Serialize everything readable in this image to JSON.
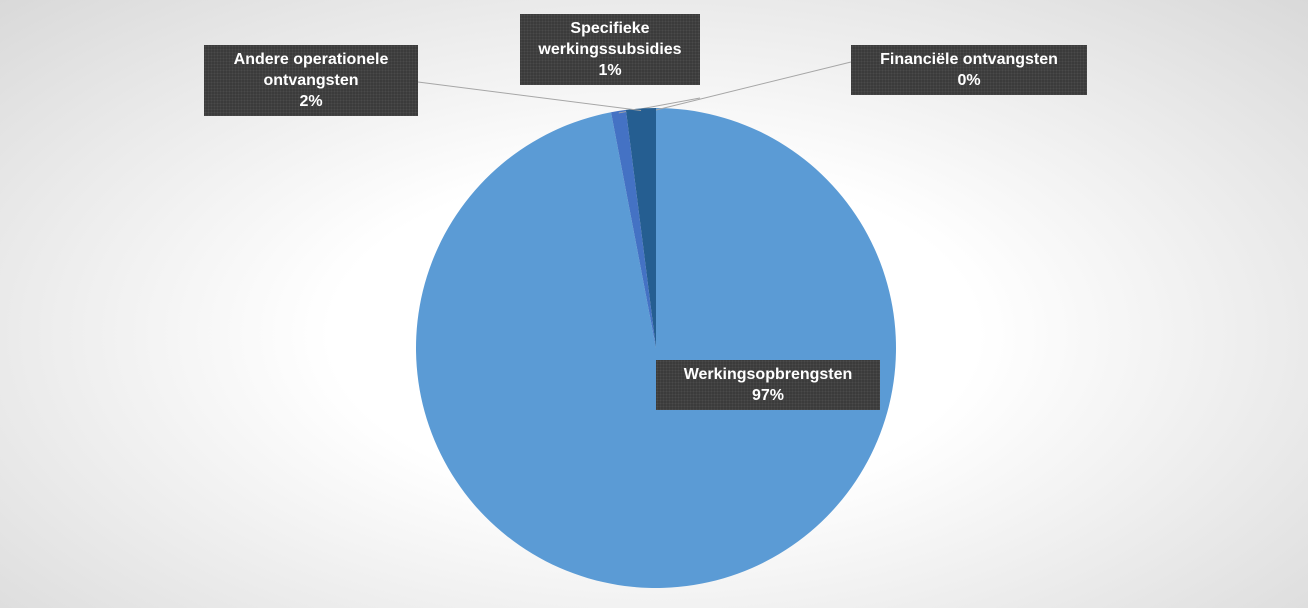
{
  "chart_data": {
    "type": "pie",
    "categories": [
      "Werkingsopbrengsten",
      "Specifieke werkingssubsidies",
      "Andere operationele ontvangsten",
      "Financiële ontvangsten"
    ],
    "values": [
      97,
      1,
      2,
      0
    ],
    "value_labels": [
      "97%",
      "1%",
      "2%",
      "0%"
    ],
    "colors": [
      "#5b9bd5",
      "#4472c4",
      "#255e91",
      "#a5a5a5"
    ]
  }
}
